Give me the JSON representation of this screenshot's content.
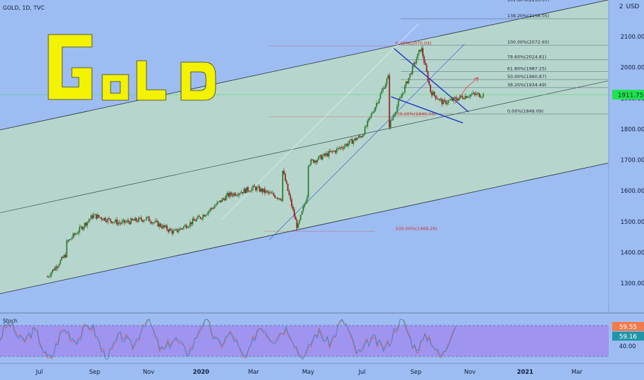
{
  "header": {
    "symbol": "GOLD, 1D, TVC"
  },
  "axis": {
    "currency": "USD",
    "currency_top_value": "2"
  },
  "overlay_text": "GOLD",
  "colors": {
    "background": "#9dbdf2",
    "channel_fill": "#b9d8c9",
    "candle_up": "#2e7d32",
    "candle_down": "#8e2323",
    "fib_red": "#d32f2f",
    "trend_blue": "#1530c8",
    "logo_yellow": "#f3f200",
    "stoch_band": "#a08df0",
    "price_badge": "#1ee34f",
    "stoch_k_badge": "#f27a4b",
    "stoch_d_badge": "#2196a8"
  },
  "chart_data": {
    "type": "candlestick",
    "interval": "1D",
    "price_axis": {
      "ticks": [
        1300,
        1400,
        1500,
        1600,
        1700,
        1800,
        1900,
        2000,
        2100
      ],
      "tick_labels": [
        "1300.00",
        "1400.00",
        "1500.00",
        "1600.00",
        "1700.00",
        "1800.00",
        "1900.00",
        "2000.00",
        "2100.00"
      ],
      "range": [
        1200,
        2220
      ]
    },
    "time_axis": {
      "labels": [
        "Jul",
        "Sep",
        "Nov",
        "2020",
        "Mar",
        "May",
        "Jul",
        "Sep",
        "Nov",
        "2021",
        "Mar"
      ]
    },
    "current_price": "1911.75",
    "price_series_monthly_close": [
      {
        "month": "2019-06",
        "close": 1395
      },
      {
        "month": "2019-07",
        "close": 1430
      },
      {
        "month": "2019-08",
        "close": 1520
      },
      {
        "month": "2019-09",
        "close": 1495
      },
      {
        "month": "2019-10",
        "close": 1510
      },
      {
        "month": "2019-11",
        "close": 1465
      },
      {
        "month": "2019-12",
        "close": 1515
      },
      {
        "month": "2020-01",
        "close": 1585
      },
      {
        "month": "2020-02",
        "close": 1610
      },
      {
        "month": "2020-03",
        "close": 1575
      },
      {
        "month": "2020-04",
        "close": 1690
      },
      {
        "month": "2020-05",
        "close": 1730
      },
      {
        "month": "2020-06",
        "close": 1780
      },
      {
        "month": "2020-07",
        "close": 1975
      },
      {
        "month": "2020-08",
        "close": 1965
      },
      {
        "month": "2020-09",
        "close": 1885
      },
      {
        "month": "2020-10",
        "close": 1911.75
      }
    ],
    "fib_extension_labels": [
      {
        "label": "161.80%(2210.07)",
        "price": 2210.07
      },
      {
        "label": "138.20%(2158.05)",
        "price": 2158.05
      },
      {
        "label": "100.00%(2072.65)",
        "price": 2072.65
      },
      {
        "label": "78.60%(2024.81)",
        "price": 2024.81
      },
      {
        "label": "61.80%(1987.25)",
        "price": 1987.25
      },
      {
        "label": "50.00%(1960.87)",
        "price": 1960.87
      },
      {
        "label": "38.20%(1934.49)",
        "price": 1934.49
      },
      {
        "label": "0.00%(1849.09)",
        "price": 1849.09
      }
    ],
    "fib_retracement_labels": [
      {
        "label": "0.00%(2070.04)",
        "price": 2070.04
      },
      {
        "label": "38.20%(1840.16)",
        "price": 1840.16
      },
      {
        "label": "100.00%(1468.26)",
        "price": 1468.26
      }
    ],
    "stochastic": {
      "name": "Stoch",
      "k": "59.55",
      "d": "59.16",
      "band_label": "40.00"
    }
  }
}
